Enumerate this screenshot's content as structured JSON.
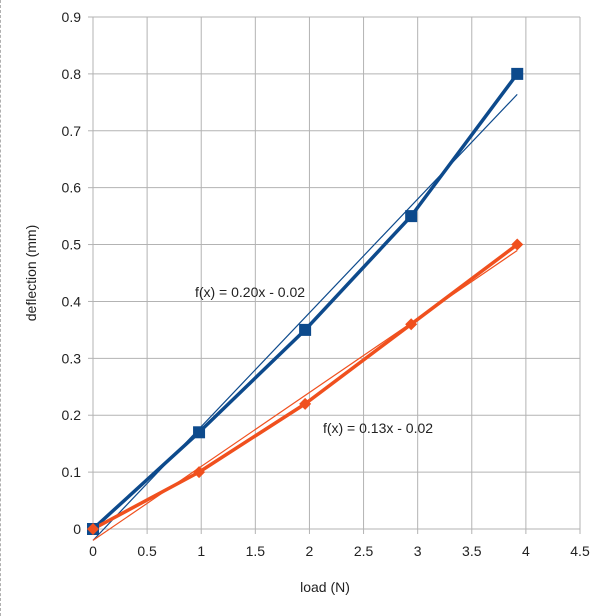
{
  "chart_data": {
    "type": "line",
    "title": "",
    "xlabel": "load (N)",
    "ylabel": "deflection (mm)",
    "xlim": [
      0,
      4.5
    ],
    "ylim": [
      0,
      0.9
    ],
    "x_ticks": [
      "0",
      "0.5",
      "1",
      "1.5",
      "2",
      "2.5",
      "3",
      "3.5",
      "4",
      "4.5"
    ],
    "y_ticks": [
      "0",
      "0.1",
      "0.2",
      "0.3",
      "0.4",
      "0.5",
      "0.6",
      "0.7",
      "0.8",
      "0.9"
    ],
    "grid": true,
    "legend": "none",
    "series": [
      {
        "marker": "square",
        "color": "#0d4a8c",
        "x": [
          0,
          0.98,
          1.96,
          2.94,
          3.92
        ],
        "y": [
          0,
          0.17,
          0.35,
          0.55,
          0.8
        ],
        "trendline": {
          "label": "f(x) = 0.20x - 0.02",
          "slope": 0.2,
          "intercept": -0.02
        }
      },
      {
        "marker": "diamond",
        "color": "#f0501e",
        "x": [
          0,
          0.98,
          1.96,
          2.94,
          3.92
        ],
        "y": [
          0,
          0.1,
          0.22,
          0.36,
          0.5
        ],
        "trendline": {
          "label": "f(x) = 0.13x - 0.02",
          "slope": 0.13,
          "intercept": -0.02
        }
      }
    ]
  }
}
